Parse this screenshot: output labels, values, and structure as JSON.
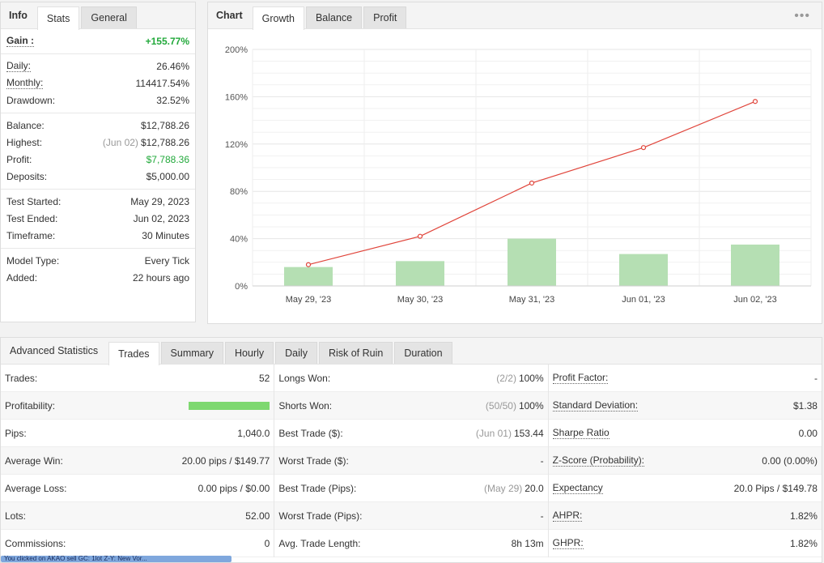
{
  "left_tabs": [
    "Info",
    "Stats",
    "General"
  ],
  "stats": {
    "gain_label": "Gain :",
    "gain_value": "+155.77%",
    "daily_label": "Daily:",
    "daily_value": "26.46%",
    "monthly_label": "Monthly:",
    "monthly_value": "114417.54%",
    "drawdown_label": "Drawdown:",
    "drawdown_value": "32.52%",
    "balance_label": "Balance:",
    "balance_value": "$12,788.26",
    "highest_label": "Highest:",
    "highest_note": "(Jun 02)",
    "highest_value": "$12,788.26",
    "profit_label": "Profit:",
    "profit_value": "$7,788.36",
    "deposits_label": "Deposits:",
    "deposits_value": "$5,000.00",
    "test_started_label": "Test Started:",
    "test_started_value": "May 29, 2023",
    "test_ended_label": "Test Ended:",
    "test_ended_value": "Jun 02, 2023",
    "timeframe_label": "Timeframe:",
    "timeframe_value": "30 Minutes",
    "model_label": "Model Type:",
    "model_value": "Every Tick",
    "added_label": "Added:",
    "added_value": "22 hours ago"
  },
  "chart_tabs": [
    "Chart",
    "Growth",
    "Balance",
    "Profit"
  ],
  "chart_data": {
    "type": "line",
    "categories": [
      "May 29, '23",
      "May 30, '23",
      "May 31, '23",
      "Jun 01, '23",
      "Jun 02, '23"
    ],
    "series": [
      {
        "kind": "line",
        "values": [
          18,
          42,
          87,
          117,
          156
        ],
        "color": "#e0443a"
      },
      {
        "kind": "bar",
        "values": [
          16,
          21,
          40,
          27,
          35
        ],
        "color": "#b5dfb3"
      }
    ],
    "ylim": [
      0,
      200
    ],
    "yticks": [
      "0%",
      "40%",
      "80%",
      "120%",
      "160%",
      "200%"
    ],
    "ytick_values": [
      0,
      40,
      80,
      120,
      160,
      200
    ],
    "grid": true
  },
  "adv_tabs": [
    "Advanced Statistics",
    "Trades",
    "Summary",
    "Hourly",
    "Daily",
    "Risk of Ruin",
    "Duration"
  ],
  "adv": {
    "col1": [
      {
        "label": "Trades:",
        "value": "52"
      },
      {
        "label": "Profitability:",
        "value": "",
        "progress": 1.0
      },
      {
        "label": "Pips:",
        "value": "1,040.0"
      },
      {
        "label": "Average Win:",
        "value": "20.00 pips / $149.77"
      },
      {
        "label": "Average Loss:",
        "value": "0.00 pips / $0.00"
      },
      {
        "label": "Lots:",
        "value": "52.00"
      },
      {
        "label": "Commissions:",
        "value": "0"
      }
    ],
    "col2": [
      {
        "label": "Longs Won:",
        "note": "(2/2)",
        "value": "100%"
      },
      {
        "label": "Shorts Won:",
        "note": "(50/50)",
        "value": "100%"
      },
      {
        "label": "Best Trade ($):",
        "note": "(Jun 01)",
        "value": "153.44"
      },
      {
        "label": "Worst Trade ($):",
        "note": "",
        "value": "-"
      },
      {
        "label": "Best Trade (Pips):",
        "note": "(May 29)",
        "value": "20.0"
      },
      {
        "label": "Worst Trade (Pips):",
        "note": "",
        "value": "-"
      },
      {
        "label": "Avg. Trade Length:",
        "note": "",
        "value": "8h 13m"
      }
    ],
    "col3": [
      {
        "label": "Profit Factor:",
        "value": "-"
      },
      {
        "label": "Standard Deviation:",
        "value": "$1.38"
      },
      {
        "label": "Sharpe Ratio",
        "value": "0.00"
      },
      {
        "label": "Z-Score (Probability):",
        "value": "0.00 (0.00%)"
      },
      {
        "label": "Expectancy",
        "value": "20.0 Pips / $149.78"
      },
      {
        "label": "AHPR:",
        "value": "1.82%"
      },
      {
        "label": "GHPR:",
        "value": "1.82%"
      }
    ]
  },
  "status_text": "You clicked on AKAO sell GC: 1lot Z-Y: New Vor..."
}
